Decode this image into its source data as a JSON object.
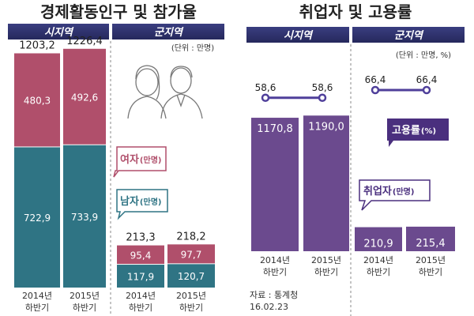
{
  "colors": {
    "header": "#2c2f6b",
    "female": "#b04f6b",
    "male": "#2f7484",
    "employed": "#6b4a8e",
    "rate_line": "#4f3f9a",
    "rate_badge": "#4a2f7e",
    "axis_text": "#333333"
  },
  "chart_data": [
    {
      "type": "bar",
      "stacked": true,
      "title": "경제활동인구 및 참가율",
      "group_headers": [
        "시지역",
        "군지역"
      ],
      "unit_note": "(단위 : 만명)",
      "categories": [
        [
          "2014년",
          "하반기"
        ],
        [
          "2015년",
          "하반기"
        ],
        [
          "2014년",
          "하반기"
        ],
        [
          "2015년",
          "하반기"
        ]
      ],
      "series": [
        {
          "name": "남자(만명)",
          "values": [
            722.9,
            733.9,
            117.9,
            120.7
          ]
        },
        {
          "name": "여자(만명)",
          "values": [
            480.3,
            492.6,
            95.4,
            97.7
          ]
        }
      ],
      "totals": [
        1203.2,
        1226.4,
        213.3,
        218.2
      ],
      "labels": {
        "male": [
          "722,9",
          "733,9",
          "117,9",
          "120,7"
        ],
        "female": [
          "480,3",
          "492,6",
          "95,4",
          "97,7"
        ],
        "totals": [
          "1203,2",
          "1226,4",
          "213,3",
          "218,2"
        ]
      },
      "legend": {
        "female": [
          "여자",
          "(만명)"
        ],
        "male": [
          "남자",
          "(만명)"
        ]
      }
    },
    {
      "type": "bar",
      "title": "취업자 및 고용률",
      "group_headers": [
        "시지역",
        "군지역"
      ],
      "unit_note": "(단위 : 만명, %)",
      "categories": [
        [
          "2014년",
          "하반기"
        ],
        [
          "2015년",
          "하반기"
        ],
        [
          "2014년",
          "하반기"
        ],
        [
          "2015년",
          "하반기"
        ]
      ],
      "series": [
        {
          "name": "취업자(만명)",
          "values": [
            1170.8,
            1190.0,
            210.9,
            215.4
          ]
        },
        {
          "name": "고용률(%)",
          "type": "line",
          "values": [
            58.6,
            58.6,
            66.4,
            66.4
          ]
        }
      ],
      "labels": {
        "employed": [
          "1170,8",
          "1190,0",
          "210,9",
          "215,4"
        ],
        "rate": [
          "58,6",
          "58,6",
          "66,4",
          "66,4"
        ]
      },
      "legend": {
        "employed": [
          "취업자",
          "(만명)"
        ],
        "rate": [
          "고용률",
          "(%)"
        ]
      }
    }
  ],
  "source": {
    "label": "자료 : 통계청",
    "date": "16.02.23"
  }
}
